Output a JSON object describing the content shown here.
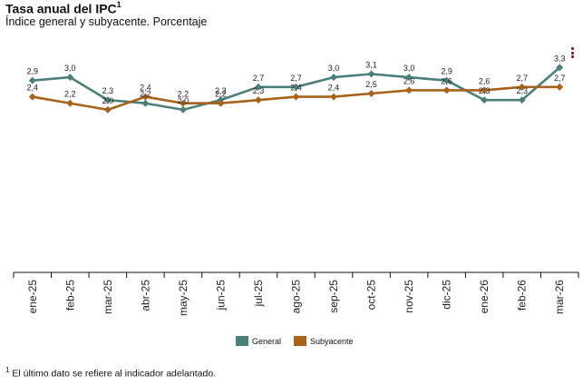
{
  "header": {
    "title": "Tasa anual del IPC",
    "title_sup": "1",
    "subtitle": "Índice general y subyacente. Porcentaje"
  },
  "menu_icon": "more-vertical-icon",
  "footnote": {
    "sup": "1",
    "text": "El último dato se refiere al indicador adelantado."
  },
  "chart_data": {
    "type": "line",
    "title": "Tasa anual del IPC",
    "subtitle": "Índice general y subyacente. Porcentaje",
    "categories": [
      "ene-25",
      "feb-25",
      "mar-25",
      "abr-25",
      "may-25",
      "jun-25",
      "jul-25",
      "ago-25",
      "sep-25",
      "oct-25",
      "nov-25",
      "dic-25",
      "ene-26",
      "feb-26",
      "mar-26"
    ],
    "ylim": [
      -3.0,
      3.7
    ],
    "grid": false,
    "legend_position": "bottom",
    "series": [
      {
        "name": "General",
        "color": "#4a7f7a",
        "marker": "diamond",
        "values": [
          2.9,
          3.0,
          2.3,
          2.2,
          2.0,
          2.3,
          2.7,
          2.7,
          3.0,
          3.1,
          3.0,
          2.9,
          2.3,
          2.3,
          3.3
        ],
        "labels": [
          "2,9",
          "3,0",
          "2,3",
          "2,2",
          "2,0",
          "2,3",
          "2,7",
          "2,7",
          "3,0",
          "3,1",
          "3,0",
          "2,9",
          "2,3",
          "2,3",
          "3,3"
        ]
      },
      {
        "name": "Subyacente",
        "color": "#a8621a",
        "marker": "diamond",
        "values": [
          2.4,
          2.2,
          2.0,
          2.4,
          2.2,
          2.2,
          2.3,
          2.4,
          2.4,
          2.5,
          2.6,
          2.6,
          2.6,
          2.7,
          2.7
        ],
        "labels": [
          "2,4",
          "2,2",
          "2,0",
          "2,4",
          "2,2",
          "2,2",
          "2,3",
          "2,4",
          "2,4",
          "2,5",
          "2,6",
          "2,6",
          "2,6",
          "2,7",
          "2,7"
        ]
      }
    ]
  }
}
